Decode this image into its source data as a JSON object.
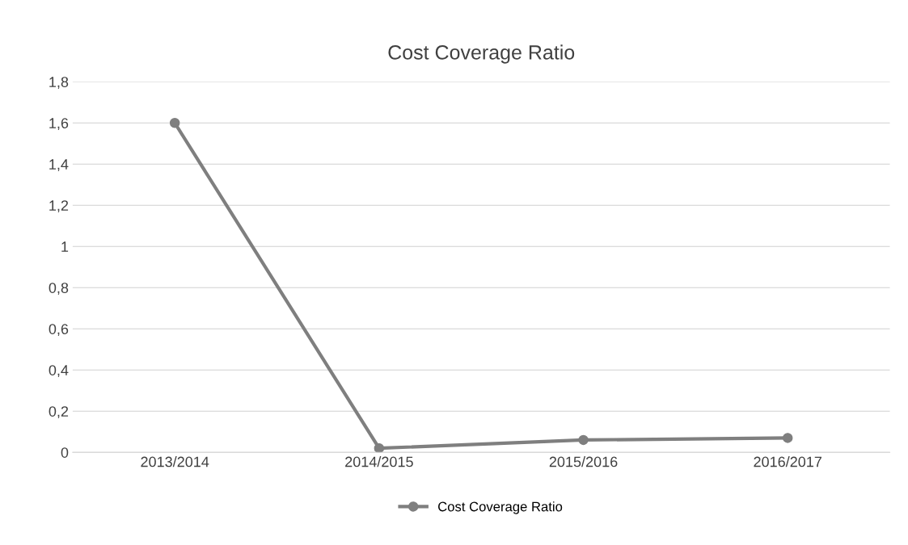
{
  "chart_data": {
    "type": "line",
    "title": "Cost Coverage Ratio",
    "categories": [
      "2013/2014",
      "2014/2015",
      "2015/2016",
      "2016/2017"
    ],
    "series": [
      {
        "name": "Cost Coverage Ratio",
        "color": "#7f7f7f",
        "values": [
          1.6,
          0.02,
          0.06,
          0.07
        ]
      }
    ],
    "ylim": [
      0,
      1.8
    ],
    "yticks": [
      0,
      {
        "value": 0.2,
        "label": "0,2"
      },
      {
        "value": 0.4,
        "label": "0,4"
      },
      {
        "value": 0.6,
        "label": "0,6"
      },
      {
        "value": 0.8,
        "label": "0,8"
      },
      1,
      {
        "value": 1.2,
        "label": "1,2"
      },
      {
        "value": 1.4,
        "label": "1,4"
      },
      {
        "value": 1.6,
        "label": "1,6"
      },
      {
        "value": 1.8,
        "label": "1,8"
      }
    ],
    "grid": "y",
    "legend": "bottom",
    "marker": "circle",
    "line_style": "solid"
  }
}
